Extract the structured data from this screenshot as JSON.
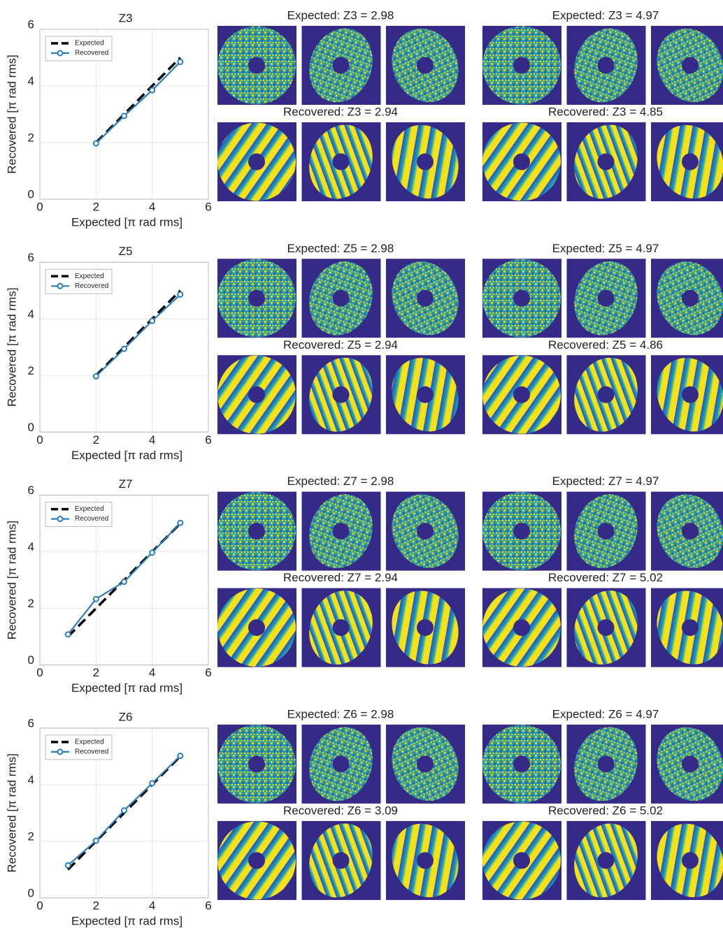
{
  "chart_data": [
    {
      "type": "line",
      "title": "Z3",
      "x_label": "Expected [π rad rms]",
      "y_label": "Recovered [π rad rms]",
      "x": [
        2,
        3,
        4,
        5
      ],
      "series": [
        {
          "name": "Expected",
          "color": "#000000",
          "dashed": true,
          "values": [
            2,
            3,
            4,
            5
          ]
        },
        {
          "name": "Recovered",
          "color": "#2a7db8",
          "marker": true,
          "values": [
            1.97,
            2.94,
            3.85,
            4.85
          ]
        }
      ],
      "xlim": [
        0,
        6
      ],
      "ylim": [
        0,
        6
      ],
      "xticks": [
        0,
        2,
        4,
        6
      ],
      "yticks": [
        0,
        2,
        4,
        6
      ],
      "grid": true,
      "legend": "upper left"
    },
    {
      "type": "line",
      "title": "Z5",
      "x_label": "Expected [π rad rms]",
      "y_label": "Recovered [π rad rms]",
      "x": [
        2,
        3,
        4,
        5
      ],
      "series": [
        {
          "name": "Expected",
          "color": "#000000",
          "dashed": true,
          "values": [
            2,
            3,
            4,
            5
          ]
        },
        {
          "name": "Recovered",
          "color": "#2a7db8",
          "marker": true,
          "values": [
            1.97,
            2.94,
            3.93,
            4.86
          ]
        }
      ],
      "xlim": [
        0,
        6
      ],
      "ylim": [
        0,
        6
      ],
      "xticks": [
        0,
        2,
        4,
        6
      ],
      "yticks": [
        0,
        2,
        4,
        6
      ],
      "grid": true,
      "legend": "upper left"
    },
    {
      "type": "line",
      "title": "Z7",
      "x_label": "Expected [π rad rms]",
      "y_label": "Recovered [π rad rms]",
      "x": [
        1,
        2,
        3,
        4,
        5
      ],
      "series": [
        {
          "name": "Expected",
          "color": "#000000",
          "dashed": true,
          "values": [
            1,
            2,
            3,
            4,
            5
          ]
        },
        {
          "name": "Recovered",
          "color": "#2a7db8",
          "marker": true,
          "values": [
            1.08,
            2.33,
            2.94,
            3.97,
            5.02
          ]
        }
      ],
      "xlim": [
        0,
        6
      ],
      "ylim": [
        0,
        6
      ],
      "xticks": [
        0,
        2,
        4,
        6
      ],
      "yticks": [
        0,
        2,
        4,
        6
      ],
      "grid": true,
      "legend": "upper left"
    },
    {
      "type": "line",
      "title": "Z6",
      "x_label": "Expected [π rad rms]",
      "y_label": "Recovered [π rad rms]",
      "x": [
        1,
        2,
        3,
        4,
        5
      ],
      "series": [
        {
          "name": "Expected",
          "color": "#000000",
          "dashed": true,
          "values": [
            1,
            2,
            3,
            4,
            5
          ]
        },
        {
          "name": "Recovered",
          "color": "#2a7db8",
          "marker": true,
          "values": [
            1.15,
            2.02,
            3.09,
            4.05,
            5.02
          ]
        }
      ],
      "xlim": [
        0,
        6
      ],
      "ylim": [
        0,
        6
      ],
      "xticks": [
        0,
        2,
        4,
        6
      ],
      "yticks": [
        0,
        2,
        4,
        6
      ],
      "grid": true,
      "legend": "upper left"
    }
  ],
  "image_panels": [
    [
      "Expected: Z3 = 2.98",
      "Expected: Z3 = 4.97",
      "Recovered: Z3 = 2.94",
      "Recovered: Z3 = 4.85"
    ],
    [
      "Expected: Z5 = 2.98",
      "Expected: Z5 = 4.97",
      "Recovered: Z5 = 2.94",
      "Recovered: Z5 = 4.86"
    ],
    [
      "Expected: Z7 = 2.98",
      "Expected: Z7 = 4.97",
      "Recovered: Z7 = 2.94",
      "Recovered: Z7 = 5.02"
    ],
    [
      "Expected: Z6 = 2.98",
      "Expected: Z6 = 4.97",
      "Recovered: Z6 = 3.09",
      "Recovered: Z6 = 5.02"
    ]
  ]
}
